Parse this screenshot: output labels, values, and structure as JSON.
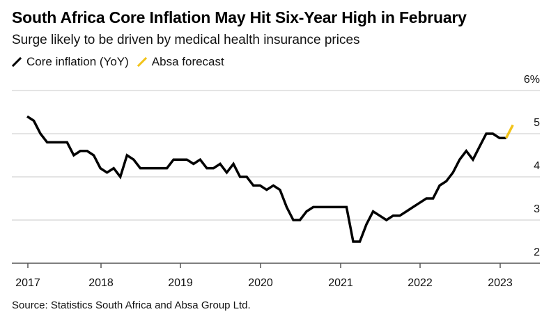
{
  "title": "South Africa Core Inflation May Hit Six-Year High in February",
  "subtitle": "Surge likely to be driven by medical health insurance prices",
  "source": "Source: Statistics South Africa and Absa Group Ltd.",
  "legend": [
    {
      "label": "Core inflation (YoY)",
      "color": "#000000"
    },
    {
      "label": "Absa forecast",
      "color": "#f2c319"
    }
  ],
  "chart_data": {
    "type": "line",
    "title": "South Africa Core Inflation May Hit Six-Year High in February",
    "subtitle": "Surge likely to be driven by medical health insurance prices",
    "xlabel": "",
    "ylabel": "",
    "y_unit": "%",
    "ylim": [
      2,
      6
    ],
    "yticks": [
      2,
      3,
      4,
      5,
      6
    ],
    "ytick_labels": [
      "2",
      "3",
      "4",
      "5",
      "6%"
    ],
    "xticks": [
      "2017",
      "2018",
      "2019",
      "2020",
      "2021",
      "2022",
      "2023"
    ],
    "x_start": "2017-01",
    "x_frequency": "monthly",
    "grid": true,
    "legend_position": "top-left",
    "series": [
      {
        "name": "Core inflation (YoY)",
        "color": "#000000",
        "start": "2017-01",
        "values": [
          5.4,
          5.3,
          5.0,
          4.8,
          4.8,
          4.8,
          4.8,
          4.5,
          4.6,
          4.6,
          4.5,
          4.2,
          4.1,
          4.2,
          4.0,
          4.5,
          4.4,
          4.2,
          4.2,
          4.2,
          4.2,
          4.2,
          4.4,
          4.4,
          4.4,
          4.3,
          4.4,
          4.2,
          4.2,
          4.3,
          4.1,
          4.3,
          4.0,
          4.0,
          3.8,
          3.8,
          3.7,
          3.8,
          3.7,
          3.3,
          3.0,
          3.0,
          3.2,
          3.3,
          3.3,
          3.3,
          3.3,
          3.3,
          3.3,
          2.5,
          2.5,
          2.9,
          3.2,
          3.1,
          3.0,
          3.1,
          3.1,
          3.2,
          3.3,
          3.4,
          3.5,
          3.5,
          3.8,
          3.9,
          4.1,
          4.4,
          4.6,
          4.4,
          4.7,
          5.0,
          5.0,
          4.9,
          4.9
        ]
      },
      {
        "name": "Absa forecast",
        "color": "#f2c319",
        "start": "2023-01",
        "values": [
          4.9,
          5.2
        ]
      }
    ]
  }
}
